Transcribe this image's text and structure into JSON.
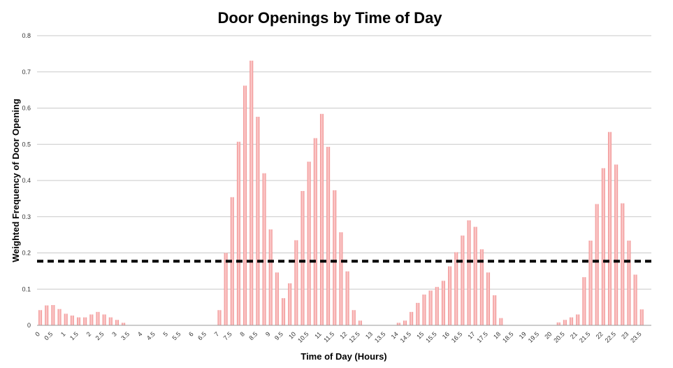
{
  "chart_data": {
    "type": "bar",
    "title": "Door Openings by Time of Day",
    "xlabel": "Time of Day (Hours)",
    "ylabel": "Weighted Frequency of Door Opening",
    "ylim": [
      0,
      0.8
    ],
    "yticks": [
      "0",
      "0.1",
      "0.2",
      "0.3",
      "0.4",
      "0.5",
      "0.6",
      "0.7",
      "0.8"
    ],
    "grid": true,
    "legend": "none",
    "bar_color": "#f08c8c",
    "bar_highlight_color": "#fcd2d2",
    "threshold": 0.177,
    "threshold_style": "dashed",
    "threshold_color": "#000000",
    "categories": [
      "0",
      "0.25",
      "0.5",
      "0.75",
      "1",
      "1.25",
      "1.5",
      "1.75",
      "2",
      "2.25",
      "2.5",
      "2.75",
      "3",
      "3.25",
      "3.5",
      "3.75",
      "4",
      "4.25",
      "4.5",
      "4.75",
      "5",
      "5.25",
      "5.5",
      "5.75",
      "6",
      "6.25",
      "6.5",
      "6.75",
      "7",
      "7.25",
      "7.5",
      "7.75",
      "8",
      "8.25",
      "8.5",
      "8.75",
      "9",
      "9.25",
      "9.5",
      "9.75",
      "10",
      "10.25",
      "10.5",
      "10.75",
      "11",
      "11.25",
      "11.5",
      "11.75",
      "12",
      "12.25",
      "12.5",
      "12.75",
      "13",
      "13.25",
      "13.5",
      "13.75",
      "14",
      "14.25",
      "14.5",
      "14.75",
      "15",
      "15.25",
      "15.5",
      "15.75",
      "16",
      "16.25",
      "16.5",
      "16.75",
      "17",
      "17.25",
      "17.5",
      "17.75",
      "18",
      "18.25",
      "18.5",
      "18.75",
      "19",
      "19.25",
      "19.5",
      "19.75",
      "20",
      "20.25",
      "20.5",
      "20.75",
      "21",
      "21.25",
      "21.5",
      "21.75",
      "22",
      "22.25",
      "22.5",
      "22.75",
      "23",
      "23.25",
      "23.5",
      "23.75"
    ],
    "tick_labels": [
      "0",
      "0.5",
      "1",
      "1.5",
      "2",
      "2.5",
      "3",
      "3.5",
      "4",
      "4.5",
      "5",
      "5.5",
      "6",
      "6.5",
      "7",
      "7.5",
      "8",
      "8.5",
      "9",
      "9.5",
      "10",
      "10.5",
      "11",
      "11.5",
      "12",
      "12.5",
      "13",
      "13.5",
      "14",
      "14.5",
      "15",
      "15.5",
      "16",
      "16.5",
      "17",
      "17.5",
      "18",
      "18.5",
      "19",
      "19.5",
      "20",
      "20.5",
      "21",
      "21.5",
      "22",
      "22.5",
      "23",
      "23.5"
    ],
    "values": [
      0.042,
      0.055,
      0.056,
      0.045,
      0.032,
      0.027,
      0.022,
      0.022,
      0.03,
      0.037,
      0.03,
      0.022,
      0.015,
      0.007,
      0,
      0,
      0,
      0,
      0,
      0,
      0,
      0,
      0,
      0,
      0,
      0,
      0,
      0,
      0.042,
      0.2,
      0.354,
      0.507,
      0.662,
      0.731,
      0.576,
      0.42,
      0.265,
      0.146,
      0.075,
      0.116,
      0.235,
      0.371,
      0.452,
      0.517,
      0.584,
      0.493,
      0.373,
      0.257,
      0.149,
      0.042,
      0.013,
      0,
      0,
      0,
      0,
      0,
      0.007,
      0.013,
      0.037,
      0.062,
      0.085,
      0.096,
      0.106,
      0.123,
      0.163,
      0.202,
      0.248,
      0.29,
      0.272,
      0.21,
      0.146,
      0.083,
      0.02,
      0,
      0,
      0,
      0,
      0,
      0,
      0,
      0,
      0.008,
      0.015,
      0.022,
      0.03,
      0.133,
      0.234,
      0.335,
      0.434,
      0.534,
      0.444,
      0.337,
      0.234,
      0.14,
      0.044,
      0
    ]
  }
}
